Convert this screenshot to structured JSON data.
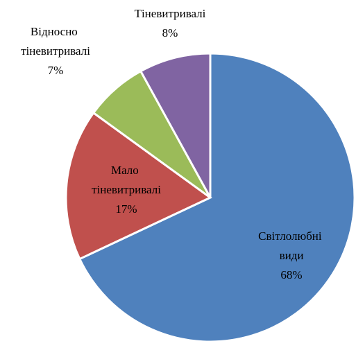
{
  "chart_data": {
    "type": "pie",
    "categories": [
      "Світлолюбні види",
      "Мало тіневитривалі",
      "Відносно тіневитривалі",
      "Тіневитривалі"
    ],
    "values": [
      68,
      17,
      7,
      8
    ],
    "value_labels": [
      "68%",
      "17%",
      "7%",
      "8%"
    ],
    "colors": [
      "#4f81bd",
      "#c0504d",
      "#9bbb59",
      "#8064a2"
    ]
  }
}
